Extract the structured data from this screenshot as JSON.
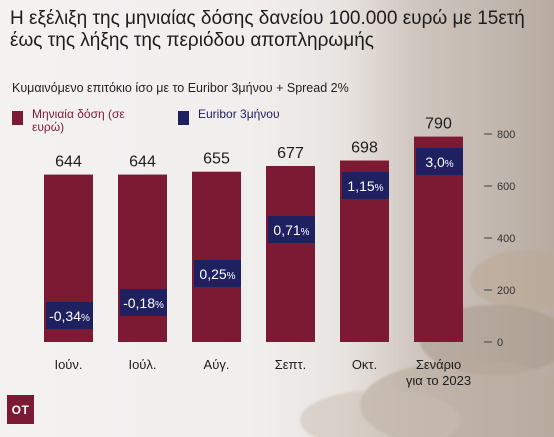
{
  "title": "Η εξέλιξη της μηνιαίας δόσης δανείου 100.000 ευρώ με 15ετή έως της λήξης της περιόδου αποπληρωμής",
  "subtitle": "Κυμαινόμενο επιτόκιο ίσο με το Euribor 3μήνου + Spread 2%",
  "logo_text": "OT",
  "colors": {
    "bar": "#7d1a33",
    "euribor_box": "#1e2060",
    "text": "#1d1d1d"
  },
  "chart_data": {
    "type": "bar",
    "categories": [
      "Ιούν.",
      "Ιούλ.",
      "Αύγ.",
      "Σεπτ.",
      "Οκτ.",
      "Σενάριο για το 2023"
    ],
    "series": [
      {
        "name": "Μηνιαία δόση (σε ευρώ)",
        "values": [
          644,
          644,
          655,
          677,
          698,
          790
        ],
        "value_labels": [
          "644",
          "644",
          "655",
          "677",
          "698",
          "790"
        ]
      },
      {
        "name": "Euribor 3μήνου",
        "values": [
          -0.34,
          -0.18,
          0.25,
          0.71,
          1.15,
          3.0
        ],
        "value_labels": [
          "-0,34%",
          "-0,18%",
          "0,25%",
          "0,71%",
          "1,15%",
          "3,0%"
        ]
      }
    ],
    "yticks": [
      "0",
      "200",
      "400",
      "600",
      "800"
    ],
    "ylim": [
      0,
      800
    ],
    "legend": "top-left",
    "grid": false
  }
}
